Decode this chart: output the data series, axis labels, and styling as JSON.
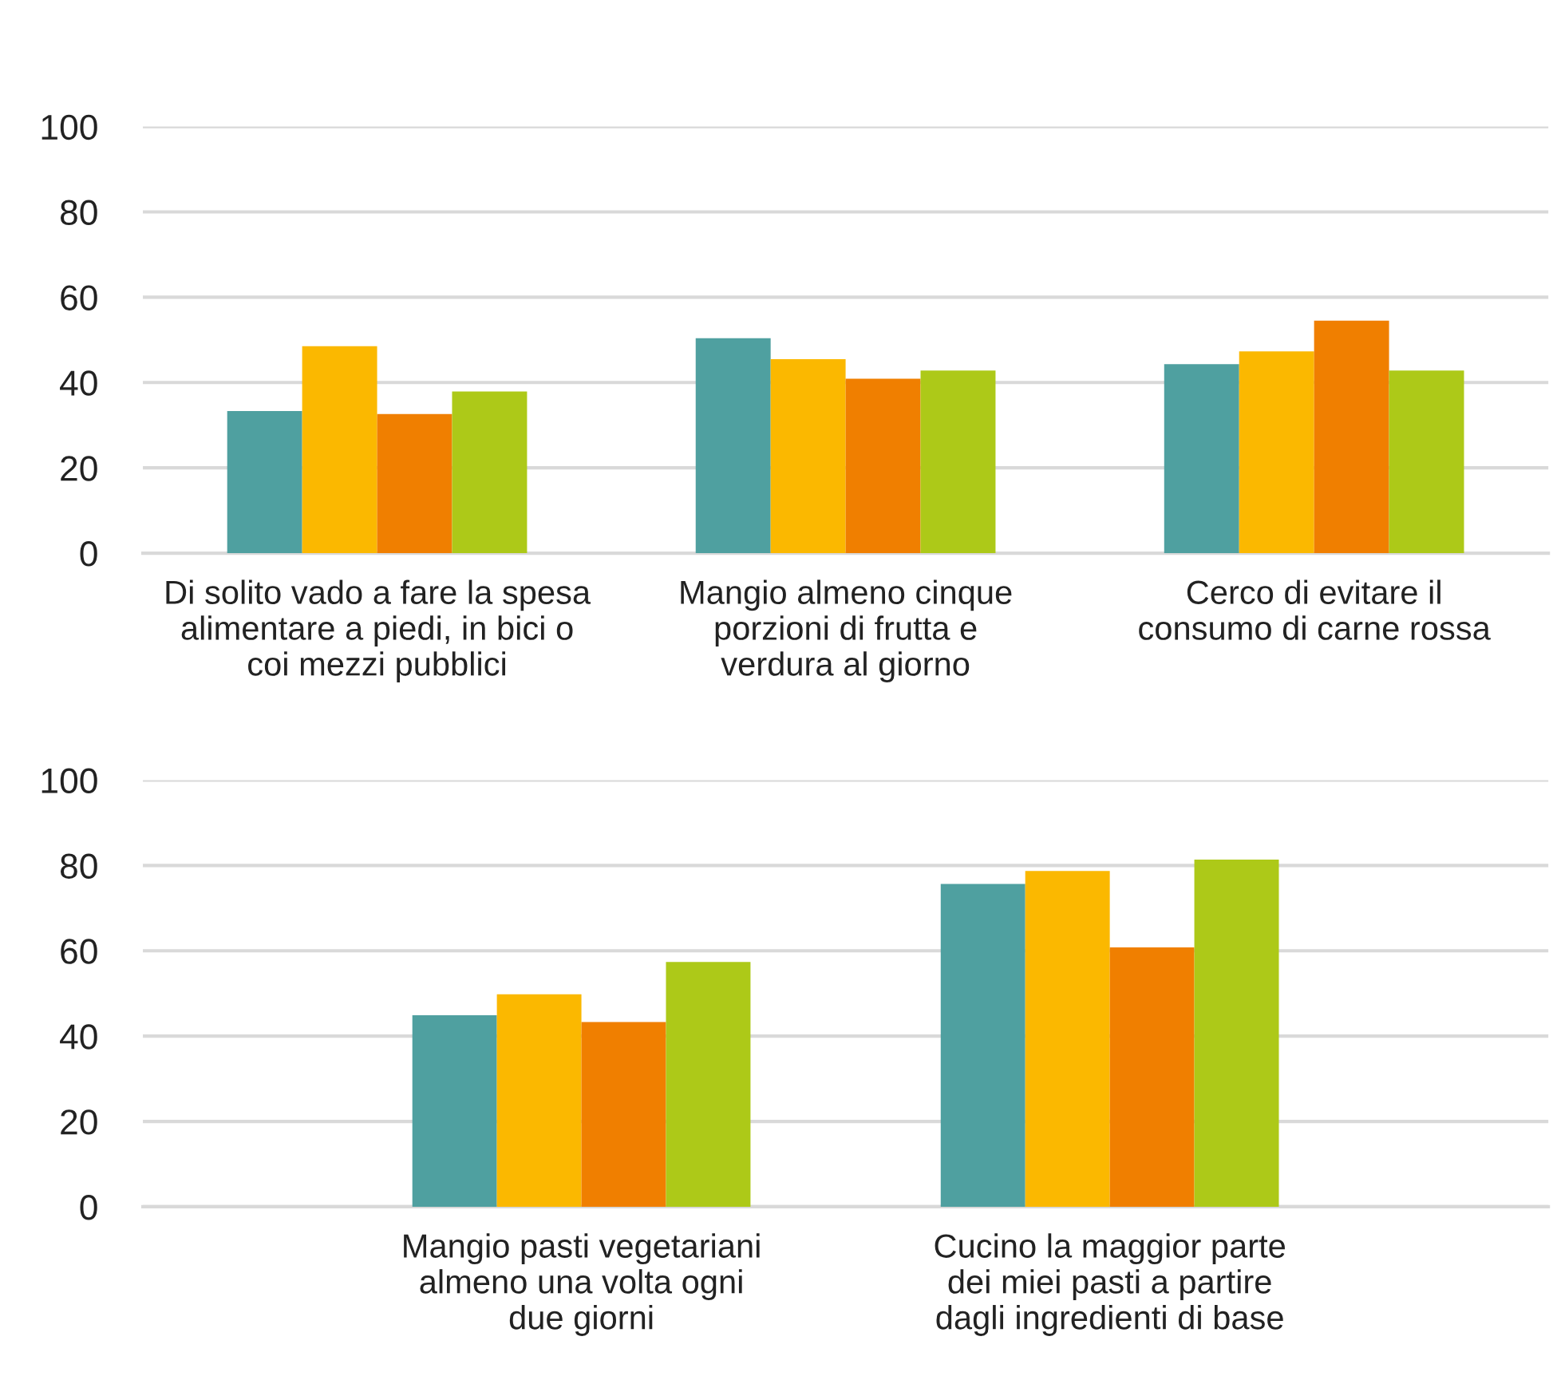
{
  "chart_data": [
    {
      "type": "bar",
      "categories": [
        "Di solito vado a fare la spesa\nalimentare a piedi, in bici o\ncoi mezzi pubblici",
        "Mangio almeno cinque\nporzioni di frutta e\nverdura al giorno",
        "Cerco di evitare il\nconsumo di carne rossa"
      ],
      "series": [
        {
          "color": "#4fa0a0",
          "values": [
            33.3,
            50.4,
            44.3
          ]
        },
        {
          "color": "#fbb800",
          "values": [
            48.5,
            45.5,
            47.3
          ]
        },
        {
          "color": "#f07f00",
          "values": [
            32.6,
            40.9,
            54.5
          ]
        },
        {
          "color": "#adc918",
          "values": [
            37.9,
            42.8,
            42.8
          ]
        }
      ],
      "ylim": [
        0,
        100
      ],
      "yticks": [
        0,
        20,
        40,
        60,
        80,
        100
      ],
      "grid": "y",
      "legend": false
    },
    {
      "type": "bar",
      "categories": [
        "Mangio pasti vegetariani\nalmeno una volta ogni\ndue giorni",
        "Cucino la maggior parte\ndei miei pasti a partire\ndagli ingredienti di base"
      ],
      "series": [
        {
          "color": "#4fa0a0",
          "values": [
            44.9,
            75.7
          ]
        },
        {
          "color": "#fbb800",
          "values": [
            49.8,
            78.7
          ]
        },
        {
          "color": "#f07f00",
          "values": [
            43.3,
            60.8
          ]
        },
        {
          "color": "#adc918",
          "values": [
            57.4,
            81.4
          ]
        }
      ],
      "ylim": [
        0,
        100
      ],
      "yticks": [
        0,
        20,
        40,
        60,
        80,
        100
      ],
      "grid": "y",
      "legend": false
    }
  ]
}
